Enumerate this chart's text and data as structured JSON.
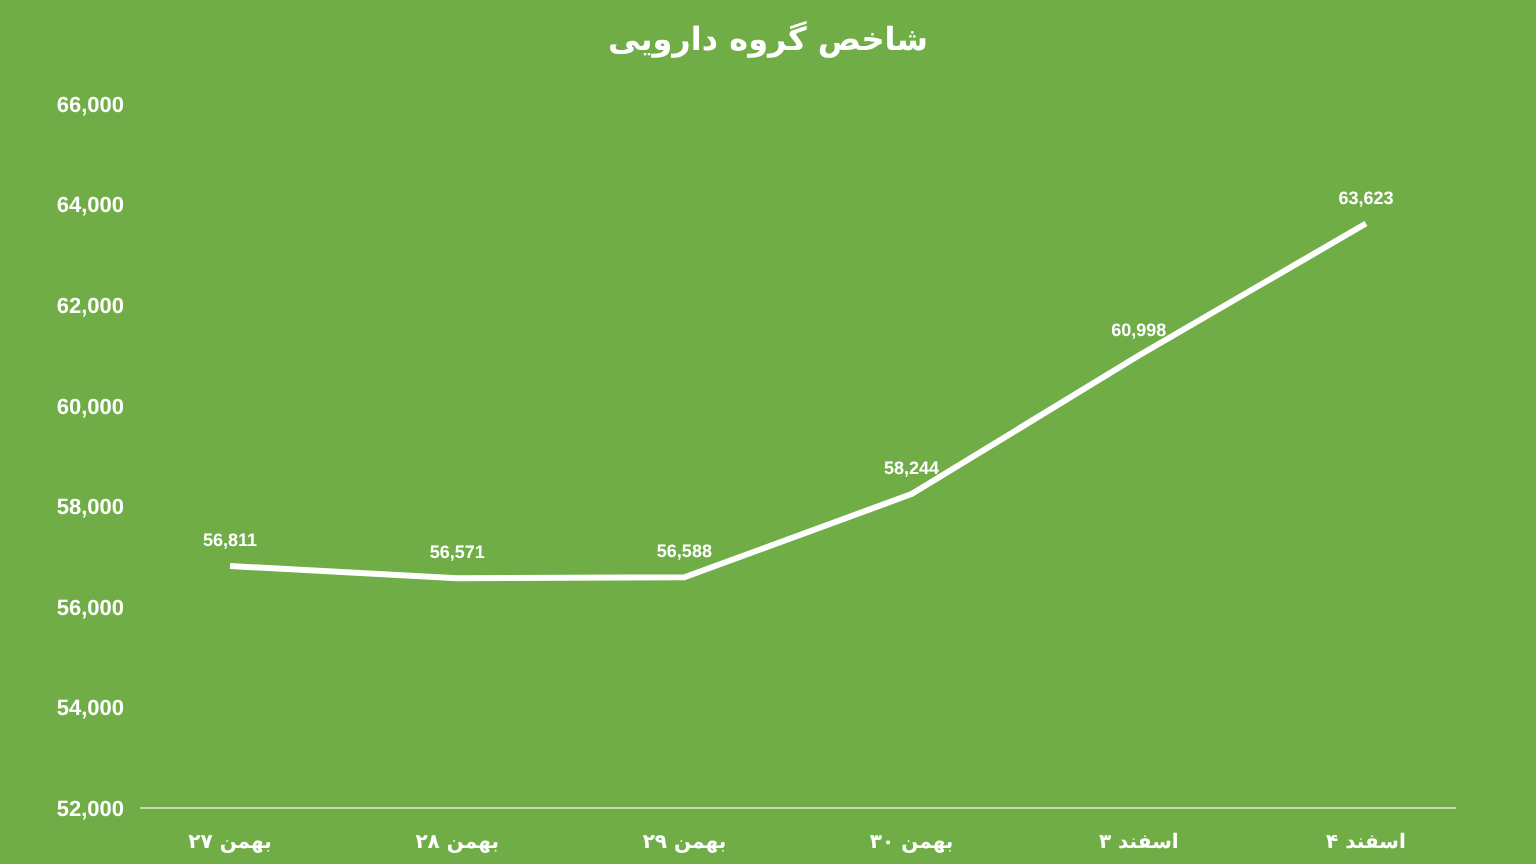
{
  "chart_data": {
    "type": "line",
    "title": "شاخص گروه دارویی",
    "categories": [
      "۲۷ بهمن",
      "۲۸ بهمن",
      "۲۹ بهمن",
      "۳۰ بهمن",
      "۳ اسفند",
      "۴ اسفند"
    ],
    "series": [
      {
        "color": "#ffffff",
        "values": [
          56811,
          56571,
          56588,
          58244,
          60998,
          63623
        ],
        "value_labels": [
          "56,811",
          "56,571",
          "56,588",
          "58,244",
          "60,998",
          "63,623"
        ]
      }
    ],
    "ylim": [
      52000,
      66000
    ],
    "yticks": [
      {
        "value": 52000,
        "label": "52,000"
      },
      {
        "value": 54000,
        "label": "54,000"
      },
      {
        "value": 56000,
        "label": "56,000"
      },
      {
        "value": 58000,
        "label": "58,000"
      },
      {
        "value": 60000,
        "label": "60,000"
      },
      {
        "value": 62000,
        "label": "62,000"
      },
      {
        "value": 64000,
        "label": "64,000"
      },
      {
        "value": 66000,
        "label": "66,000"
      }
    ],
    "grid": false,
    "marker": "none",
    "line_style": "solid"
  }
}
